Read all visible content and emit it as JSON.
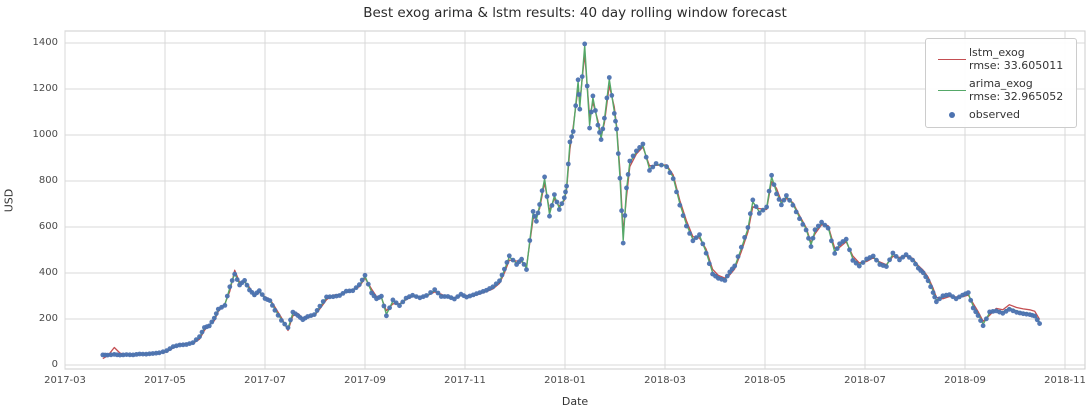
{
  "figure_title": "Best exog arima & lstm results: 40 day rolling window forecast",
  "chart_data": {
    "type": "line",
    "title": "Best exog arima & lstm results: 40 day rolling window forecast",
    "xlabel": "Date",
    "ylabel": "USD",
    "x_tick_labels": [
      "2017-03",
      "2017-05",
      "2017-07",
      "2017-09",
      "2017-11",
      "2018-01",
      "2018-03",
      "2018-05",
      "2018-07",
      "2018-09",
      "2018-11"
    ],
    "y_ticks": [
      0,
      200,
      400,
      600,
      800,
      1000,
      1200,
      1400
    ],
    "ylim": [
      -20,
      1455
    ],
    "grid": true,
    "grid_color": "#d9d9d9",
    "spine_color": "#cccccc",
    "legend_position": "upper right",
    "series": [
      {
        "key": "lstm_exog",
        "label": "lstm_exog",
        "rmse": "rmse: 33.605011",
        "color": "#c44e52",
        "type": "line"
      },
      {
        "key": "arima_exog",
        "label": "arima_exog",
        "rmse": "rmse: 32.965052",
        "color": "#55a868",
        "type": "line"
      },
      {
        "key": "observed",
        "label": "observed",
        "rmse": "",
        "color": "#4c72b0",
        "type": "scatter"
      }
    ],
    "columns": [
      "date",
      "lstm_exog",
      "arima_exog",
      "observed"
    ],
    "rows": [
      [
        "2017-03-24",
        28,
        46,
        44
      ],
      [
        "2017-03-27",
        40,
        44,
        43
      ],
      [
        "2017-03-31",
        76,
        48,
        46
      ],
      [
        "2017-04-04",
        52,
        44,
        43
      ],
      [
        "2017-04-08",
        42,
        44,
        45
      ],
      [
        "2017-04-12",
        44,
        45,
        44
      ],
      [
        "2017-04-16",
        46,
        47,
        48
      ],
      [
        "2017-04-20",
        48,
        48,
        47
      ],
      [
        "2017-04-24",
        50,
        49,
        50
      ],
      [
        "2017-04-28",
        51,
        52,
        53
      ],
      [
        "2017-05-02",
        57,
        60,
        62
      ],
      [
        "2017-05-06",
        74,
        78,
        80
      ],
      [
        "2017-05-10",
        90,
        88,
        87
      ],
      [
        "2017-05-14",
        92,
        90,
        89
      ],
      [
        "2017-05-18",
        94,
        96,
        97
      ],
      [
        "2017-05-22",
        112,
        120,
        123
      ],
      [
        "2017-05-25",
        150,
        160,
        163
      ],
      [
        "2017-05-28",
        176,
        172,
        170
      ],
      [
        "2017-05-31",
        192,
        200,
        204
      ],
      [
        "2017-06-03",
        232,
        240,
        243
      ],
      [
        "2017-06-07",
        266,
        262,
        259
      ],
      [
        "2017-06-10",
        320,
        335,
        340
      ],
      [
        "2017-06-13",
        412,
        398,
        395
      ],
      [
        "2017-06-16",
        360,
        352,
        348
      ],
      [
        "2017-06-19",
        362,
        365,
        368
      ],
      [
        "2017-06-22",
        338,
        330,
        326
      ],
      [
        "2017-06-25",
        300,
        302,
        305
      ],
      [
        "2017-06-28",
        316,
        320,
        323
      ],
      [
        "2017-07-01",
        296,
        292,
        289
      ],
      [
        "2017-07-04",
        286,
        282,
        280
      ],
      [
        "2017-07-07",
        252,
        242,
        238
      ],
      [
        "2017-07-11",
        206,
        198,
        194
      ],
      [
        "2017-07-15",
        150,
        158,
        162
      ],
      [
        "2017-07-18",
        214,
        226,
        230
      ],
      [
        "2017-07-21",
        224,
        218,
        215
      ],
      [
        "2017-07-24",
        204,
        200,
        197
      ],
      [
        "2017-07-27",
        206,
        208,
        211
      ],
      [
        "2017-07-31",
        214,
        216,
        219
      ],
      [
        "2017-08-04",
        244,
        252,
        256
      ],
      [
        "2017-08-08",
        284,
        292,
        296
      ],
      [
        "2017-08-12",
        304,
        300,
        297
      ],
      [
        "2017-08-16",
        307,
        305,
        302
      ],
      [
        "2017-08-20",
        315,
        318,
        321
      ],
      [
        "2017-08-24",
        329,
        326,
        323
      ],
      [
        "2017-08-28",
        340,
        345,
        349
      ],
      [
        "2017-09-01",
        378,
        386,
        390
      ],
      [
        "2017-09-05",
        330,
        318,
        313
      ],
      [
        "2017-09-08",
        298,
        292,
        288
      ],
      [
        "2017-09-11",
        292,
        296,
        299
      ],
      [
        "2017-09-14",
        236,
        220,
        214
      ],
      [
        "2017-09-18",
        266,
        278,
        283
      ],
      [
        "2017-09-22",
        266,
        262,
        258
      ],
      [
        "2017-09-26",
        284,
        288,
        291
      ],
      [
        "2017-09-30",
        298,
        300,
        303
      ],
      [
        "2017-10-04",
        297,
        295,
        292
      ],
      [
        "2017-10-08",
        299,
        300,
        302
      ],
      [
        "2017-10-13",
        318,
        324,
        328
      ],
      [
        "2017-10-17",
        308,
        302,
        298
      ],
      [
        "2017-10-21",
        294,
        296,
        298
      ],
      [
        "2017-10-25",
        293,
        290,
        287
      ],
      [
        "2017-10-29",
        301,
        305,
        308
      ],
      [
        "2017-11-02",
        302,
        298,
        295
      ],
      [
        "2017-11-06",
        300,
        302,
        305
      ],
      [
        "2017-11-10",
        309,
        312,
        315
      ],
      [
        "2017-11-14",
        319,
        322,
        325
      ],
      [
        "2017-11-18",
        331,
        336,
        340
      ],
      [
        "2017-11-22",
        355,
        362,
        366
      ],
      [
        "2017-11-25",
        400,
        412,
        417
      ],
      [
        "2017-11-28",
        456,
        470,
        475
      ],
      [
        "2017-12-02",
        452,
        442,
        437
      ],
      [
        "2017-12-05",
        450,
        456,
        460
      ],
      [
        "2017-12-08",
        428,
        420,
        415
      ],
      [
        "2017-12-12",
        635,
        660,
        668
      ],
      [
        "2017-12-14",
        648,
        632,
        625
      ],
      [
        "2017-12-16",
        680,
        692,
        698
      ],
      [
        "2017-12-19",
        792,
        810,
        818
      ],
      [
        "2017-12-22",
        672,
        655,
        647
      ],
      [
        "2017-12-25",
        722,
        735,
        741
      ],
      [
        "2017-12-28",
        690,
        682,
        676
      ],
      [
        "2017-12-31",
        716,
        722,
        727
      ],
      [
        "2018-01-02",
        762,
        772,
        778
      ],
      [
        "2018-01-04",
        938,
        962,
        970
      ],
      [
        "2018-01-06",
        1035,
        1022,
        1015
      ],
      [
        "2018-01-09",
        1205,
        1232,
        1240
      ],
      [
        "2018-01-10",
        1140,
        1120,
        1112
      ],
      [
        "2018-01-13",
        1352,
        1388,
        1396
      ],
      [
        "2018-01-16",
        1080,
        1042,
        1030
      ],
      [
        "2018-01-18",
        1142,
        1162,
        1170
      ],
      [
        "2018-01-21",
        1062,
        1050,
        1043
      ],
      [
        "2018-01-23",
        992,
        986,
        980
      ],
      [
        "2018-01-25",
        1052,
        1066,
        1073
      ],
      [
        "2018-01-28",
        1215,
        1242,
        1250
      ],
      [
        "2018-01-31",
        1122,
        1102,
        1094
      ],
      [
        "2018-02-02",
        1040,
        1032,
        1026
      ],
      [
        "2018-02-04",
        850,
        822,
        812
      ],
      [
        "2018-02-06",
        575,
        542,
        530
      ],
      [
        "2018-02-08",
        730,
        762,
        770
      ],
      [
        "2018-02-10",
        862,
        880,
        887
      ],
      [
        "2018-02-14",
        918,
        926,
        931
      ],
      [
        "2018-02-18",
        948,
        956,
        961
      ],
      [
        "2018-02-22",
        866,
        852,
        846
      ],
      [
        "2018-02-26",
        868,
        872,
        876
      ],
      [
        "2018-03-02",
        870,
        866,
        862
      ],
      [
        "2018-03-06",
        826,
        816,
        810
      ],
      [
        "2018-03-10",
        716,
        702,
        695
      ],
      [
        "2018-03-14",
        628,
        612,
        604
      ],
      [
        "2018-03-18",
        558,
        546,
        540
      ],
      [
        "2018-03-22",
        552,
        562,
        567
      ],
      [
        "2018-03-26",
        504,
        492,
        486
      ],
      [
        "2018-03-30",
        416,
        402,
        395
      ],
      [
        "2018-04-03",
        390,
        382,
        377
      ],
      [
        "2018-04-07",
        378,
        372,
        368
      ],
      [
        "2018-04-10",
        392,
        400,
        405
      ],
      [
        "2018-04-13",
        418,
        426,
        431
      ],
      [
        "2018-04-17",
        492,
        506,
        512
      ],
      [
        "2018-04-21",
        578,
        592,
        598
      ],
      [
        "2018-04-24",
        688,
        710,
        718
      ],
      [
        "2018-04-28",
        680,
        666,
        659
      ],
      [
        "2018-05-02",
        676,
        682,
        687
      ],
      [
        "2018-05-05",
        798,
        818,
        825
      ],
      [
        "2018-05-08",
        768,
        752,
        744
      ],
      [
        "2018-05-11",
        712,
        702,
        696
      ],
      [
        "2018-05-14",
        724,
        732,
        737
      ],
      [
        "2018-05-18",
        706,
        700,
        695
      ],
      [
        "2018-05-22",
        650,
        642,
        636
      ],
      [
        "2018-05-26",
        598,
        592,
        587
      ],
      [
        "2018-05-29",
        532,
        522,
        515
      ],
      [
        "2018-06-01",
        570,
        582,
        588
      ],
      [
        "2018-06-05",
        610,
        616,
        621
      ],
      [
        "2018-06-09",
        606,
        600,
        595
      ],
      [
        "2018-06-13",
        508,
        492,
        485
      ],
      [
        "2018-06-16",
        512,
        522,
        527
      ],
      [
        "2018-06-20",
        536,
        542,
        547
      ],
      [
        "2018-06-24",
        474,
        462,
        455
      ],
      [
        "2018-06-28",
        444,
        436,
        430
      ],
      [
        "2018-07-02",
        450,
        456,
        461
      ],
      [
        "2018-07-06",
        466,
        470,
        474
      ],
      [
        "2018-07-10",
        448,
        442,
        437
      ],
      [
        "2018-07-14",
        436,
        432,
        428
      ],
      [
        "2018-07-18",
        472,
        482,
        487
      ],
      [
        "2018-07-22",
        468,
        462,
        457
      ],
      [
        "2018-07-26",
        472,
        476,
        480
      ],
      [
        "2018-07-30",
        464,
        460,
        456
      ],
      [
        "2018-08-03",
        432,
        426,
        421
      ],
      [
        "2018-08-06",
        412,
        406,
        401
      ],
      [
        "2018-08-09",
        382,
        372,
        366
      ],
      [
        "2018-08-12",
        334,
        322,
        315
      ],
      [
        "2018-08-14",
        294,
        282,
        275
      ],
      [
        "2018-08-18",
        288,
        296,
        301
      ],
      [
        "2018-08-22",
        298,
        302,
        306
      ],
      [
        "2018-08-26",
        296,
        292,
        288
      ],
      [
        "2018-08-30",
        297,
        300,
        304
      ],
      [
        "2018-09-03",
        304,
        310,
        315
      ],
      [
        "2018-09-06",
        268,
        256,
        248
      ],
      [
        "2018-09-09",
        232,
        222,
        215
      ],
      [
        "2018-09-12",
        190,
        178,
        171
      ],
      [
        "2018-09-16",
        216,
        226,
        231
      ],
      [
        "2018-09-20",
        246,
        240,
        235
      ],
      [
        "2018-09-24",
        240,
        230,
        225
      ],
      [
        "2018-09-28",
        262,
        248,
        242
      ],
      [
        "2018-10-02",
        250,
        235,
        229
      ],
      [
        "2018-10-06",
        244,
        228,
        223
      ],
      [
        "2018-10-10",
        240,
        224,
        219
      ],
      [
        "2018-10-13",
        234,
        218,
        213
      ],
      [
        "2018-10-16",
        198,
        186,
        180
      ]
    ]
  }
}
